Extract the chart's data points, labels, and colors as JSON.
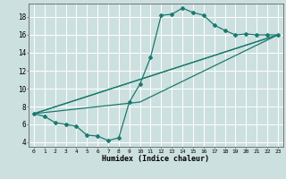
{
  "xlabel": "Humidex (Indice chaleur)",
  "ylabel": "",
  "bg_color": "#cde0e0",
  "grid_color": "#ffffff",
  "line_color": "#1a7a6e",
  "xlim": [
    -0.5,
    23.5
  ],
  "ylim": [
    3.5,
    19.5
  ],
  "xticks": [
    0,
    1,
    2,
    3,
    4,
    5,
    6,
    7,
    8,
    9,
    10,
    11,
    12,
    13,
    14,
    15,
    16,
    17,
    18,
    19,
    20,
    21,
    22,
    23
  ],
  "yticks": [
    4,
    6,
    8,
    10,
    12,
    14,
    16,
    18
  ],
  "series_main": {
    "x": [
      0,
      1,
      2,
      3,
      4,
      5,
      6,
      7,
      8,
      9,
      10,
      11,
      12,
      13,
      14,
      15,
      16,
      17,
      18,
      19,
      20,
      21,
      22,
      23
    ],
    "y": [
      7.2,
      6.9,
      6.2,
      6.0,
      5.8,
      4.8,
      4.7,
      4.2,
      4.5,
      8.5,
      10.5,
      13.5,
      18.2,
      18.3,
      19.0,
      18.5,
      18.2,
      17.1,
      16.5,
      16.0,
      16.1,
      16.0,
      16.0,
      16.0
    ]
  },
  "line1": {
    "x": [
      0,
      23
    ],
    "y": [
      7.2,
      16.0
    ]
  },
  "line2": {
    "x": [
      0,
      23
    ],
    "y": [
      7.2,
      16.0
    ]
  },
  "line3": {
    "x": [
      0,
      10,
      23
    ],
    "y": [
      7.2,
      8.5,
      16.0
    ]
  }
}
